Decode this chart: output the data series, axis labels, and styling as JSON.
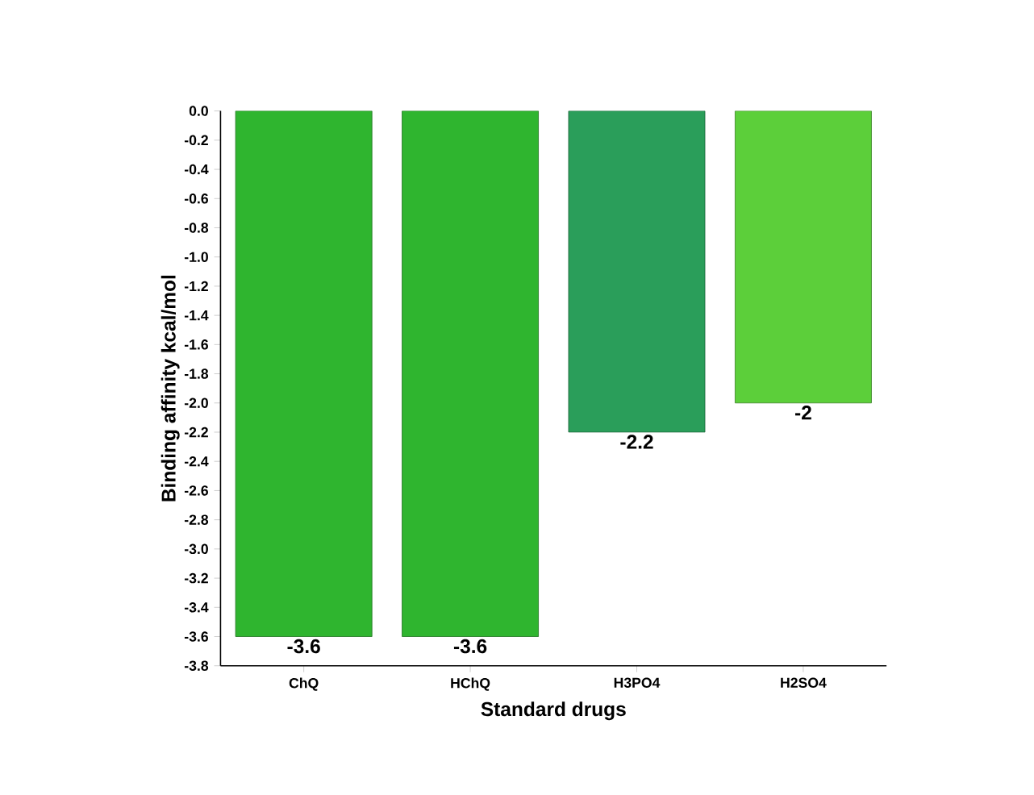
{
  "chart_data": {
    "type": "bar",
    "xlabel": "Standard drugs",
    "ylabel": "Binding affinity kcal/mol",
    "categories": [
      "ChQ",
      "HChQ",
      "H3PO4",
      "H2SO4"
    ],
    "values": [
      -3.6,
      -3.6,
      -2.2,
      -2
    ],
    "value_labels": [
      "-3.6",
      "-3.6",
      "-2.2",
      "-2"
    ],
    "colors": [
      "#2fb52f",
      "#2fb52f",
      "#2a9e5a",
      "#5ccf3a"
    ],
    "ylim": [
      -3.8,
      0
    ],
    "yticks": [
      {
        "value": 0,
        "label": "0.0"
      },
      -0.2,
      -0.4,
      -0.6,
      -0.8,
      {
        "value": -1,
        "label": "-1.0"
      },
      -1.2,
      -1.4,
      -1.6,
      -1.8,
      {
        "value": -2,
        "label": "-2.0"
      },
      -2.2,
      -2.4,
      -2.6,
      -2.8,
      {
        "value": -3,
        "label": "-3.0"
      },
      -3.2,
      -3.4,
      -3.6,
      -3.8
    ],
    "grid": false
  }
}
